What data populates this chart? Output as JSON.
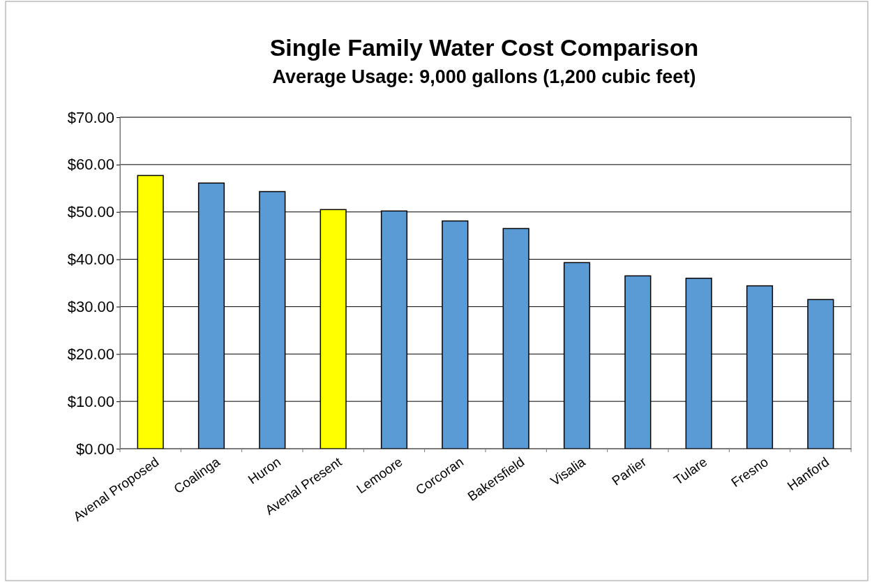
{
  "chart_data": {
    "type": "bar",
    "title": "Single Family Water Cost Comparison",
    "subtitle": "Average Usage: 9,000 gallons (1,200 cubic feet)",
    "categories": [
      "Avenal Proposed",
      "Coalinga",
      "Huron",
      "Avenal Present",
      "Lemoore",
      "Corcoran",
      "Bakersfield",
      "Visalia",
      "Parlier",
      "Tulare",
      "Fresno",
      "Hanford"
    ],
    "values": [
      57.7,
      56.1,
      54.3,
      50.5,
      50.2,
      48.1,
      46.5,
      39.3,
      36.5,
      36.0,
      34.4,
      31.5
    ],
    "colors": [
      "#ffff00",
      "#5b9bd5",
      "#5b9bd5",
      "#ffff00",
      "#5b9bd5",
      "#5b9bd5",
      "#5b9bd5",
      "#5b9bd5",
      "#5b9bd5",
      "#5b9bd5",
      "#5b9bd5",
      "#5b9bd5"
    ],
    "ylim": [
      0,
      70
    ],
    "yticks": [
      {
        "value": 0,
        "label": "$0.00"
      },
      {
        "value": 10,
        "label": "$10.00"
      },
      {
        "value": 20,
        "label": "$20.00"
      },
      {
        "value": 30,
        "label": "$30.00"
      },
      {
        "value": 40,
        "label": "$40.00"
      },
      {
        "value": 50,
        "label": "$50.00"
      },
      {
        "value": 60,
        "label": "$60.00"
      },
      {
        "value": 70,
        "label": "$70.00"
      }
    ],
    "grid": "y"
  }
}
